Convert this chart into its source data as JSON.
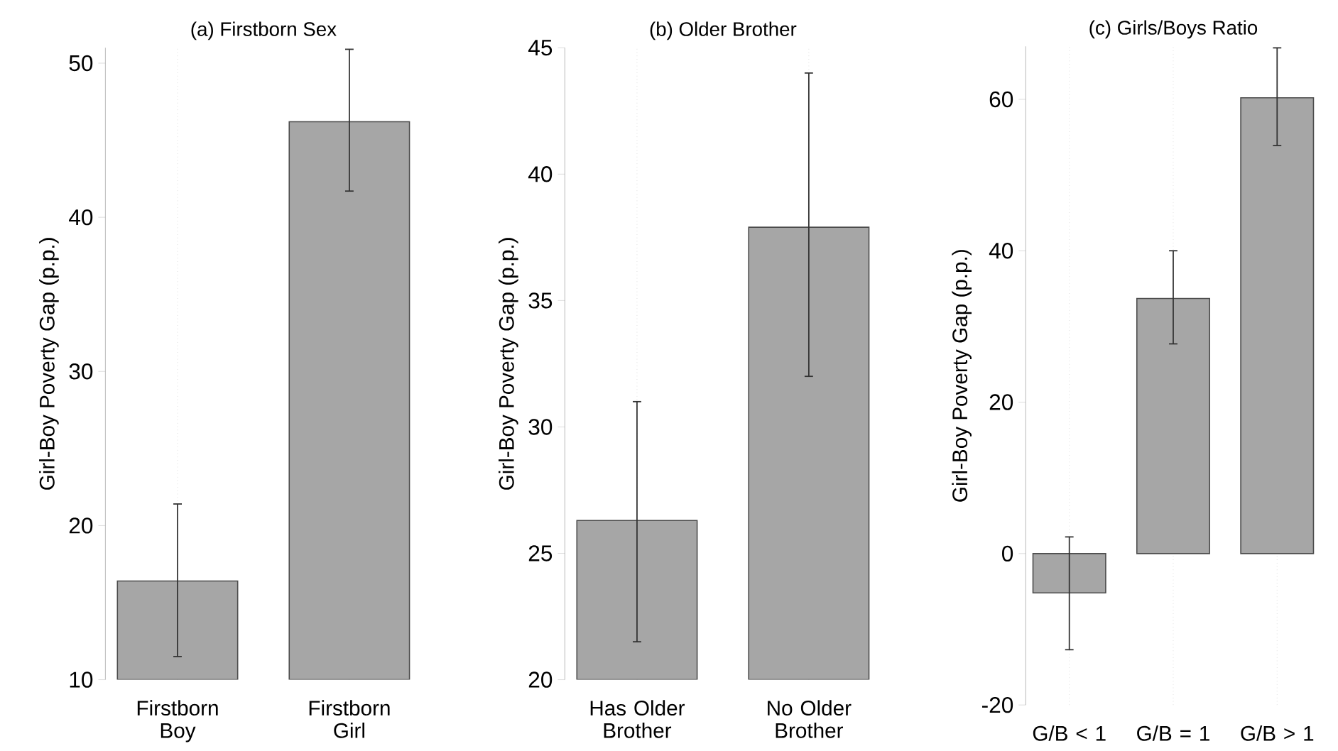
{
  "chart_data": [
    {
      "type": "bar",
      "title": "(a) Firstborn Sex",
      "ylabel": "Girl-Boy Poverty Gap (p.p.)",
      "categories": [
        "Firstborn Boy",
        "Firstborn Girl"
      ],
      "values": [
        16.4,
        46.2
      ],
      "errors": [
        [
          11.5,
          21.4
        ],
        [
          41.7,
          50.9
        ]
      ],
      "color": "#a6a6a6",
      "ylim": [
        10,
        51
      ],
      "yticks": [
        10,
        20,
        30,
        40,
        50
      ],
      "grid": "x"
    },
    {
      "type": "bar",
      "title": "(b) Older Brother",
      "ylabel": "Girl-Boy Poverty Gap (p.p.)",
      "categories": [
        "Has Older Brother",
        "No Older Brother"
      ],
      "values": [
        26.3,
        37.9
      ],
      "errors": [
        [
          21.5,
          31.0
        ],
        [
          32.0,
          44.0
        ]
      ],
      "color": "#a6a6a6",
      "ylim": [
        20,
        45
      ],
      "yticks": [
        20,
        25,
        30,
        35,
        40,
        45
      ],
      "grid": "x"
    },
    {
      "type": "bar",
      "title": "(c) Girls/Boys Ratio",
      "ylabel": "Girl-Boy Poverty Gap (p.p.)",
      "categories": [
        "G/B < 1",
        "G/B = 1",
        "G/B > 1"
      ],
      "values": [
        -5.2,
        33.7,
        60.2
      ],
      "errors": [
        [
          -12.7,
          2.2
        ],
        [
          27.7,
          40.0
        ],
        [
          53.9,
          66.8
        ]
      ],
      "color": "#a6a6a6",
      "ylim": [
        -20,
        67
      ],
      "yticks": [
        -20,
        0,
        20,
        40,
        60
      ],
      "grid": "x"
    }
  ]
}
